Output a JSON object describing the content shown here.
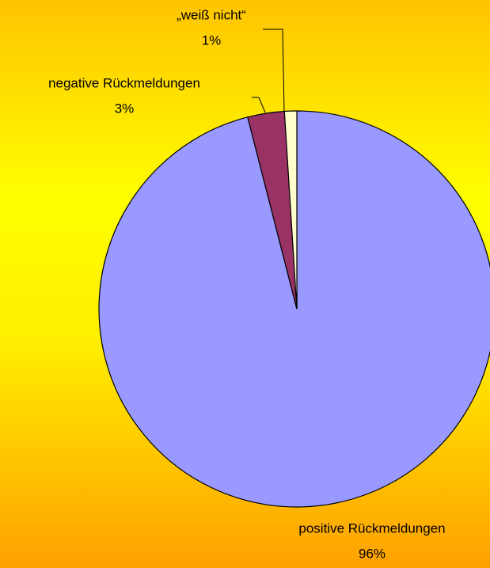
{
  "chart_data": {
    "type": "pie",
    "categories": [
      "positive Rückmeldungen",
      "negative Rückmeldungen",
      "„weiß nicht“"
    ],
    "values": [
      96,
      3,
      1
    ],
    "value_labels": [
      "96%",
      "3%",
      "1%"
    ],
    "colors": [
      "#9999ff",
      "#993366",
      "#ffffcc"
    ]
  }
}
